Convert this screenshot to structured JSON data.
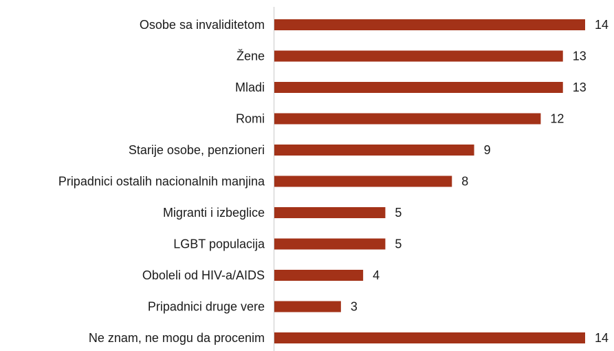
{
  "chart_data": {
    "type": "bar",
    "orientation": "horizontal",
    "categories": [
      "Osobe sa invaliditetom",
      "Žene",
      "Mladi",
      "Romi",
      "Starije osobe, penzioneri",
      "Pripadnici ostalih nacionalnih manjina",
      "Migranti i izbeglice",
      "LGBT populacija",
      "Oboleli od HIV-a/AIDS",
      "Pripadnici druge vere",
      "Ne znam, ne mogu da procenim"
    ],
    "values": [
      14,
      13,
      13,
      12,
      9,
      8,
      5,
      5,
      4,
      3,
      14
    ],
    "color": "#a33218",
    "xlim": [
      0,
      14
    ]
  }
}
